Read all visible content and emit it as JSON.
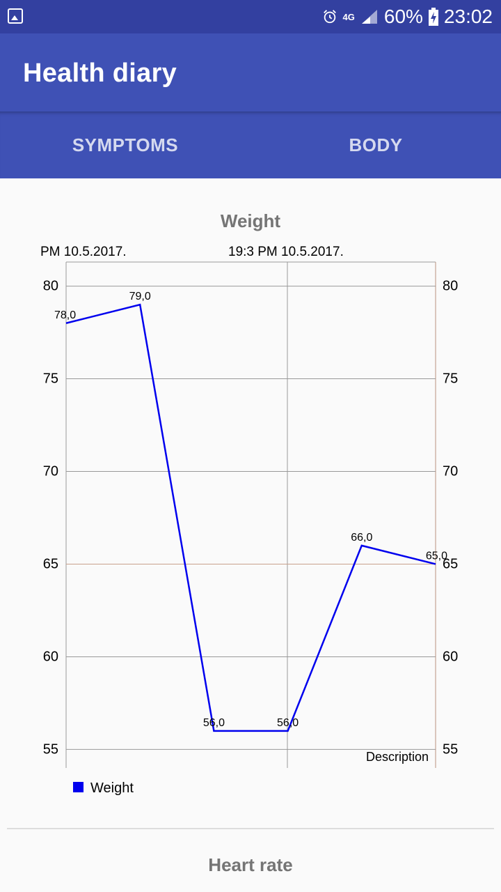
{
  "status_bar": {
    "network": "4G",
    "battery": "60%",
    "time": "23:02",
    "icons": [
      "gallery-icon",
      "alarm-icon",
      "signal-icon",
      "battery-icon"
    ]
  },
  "app": {
    "title": "Health diary"
  },
  "tabs": [
    {
      "label": "SYMPTOMS"
    },
    {
      "label": "BODY"
    }
  ],
  "colors": {
    "primary": "#3f51b5",
    "status_bar": "#3340a0",
    "series": "#0000ee",
    "limit_line": "#c8a08c"
  },
  "chart_data": {
    "type": "line",
    "title": "Weight",
    "description": "Description",
    "x_labels": [
      "PM 10.5.2017.",
      "19:3 PM 10.5.2017."
    ],
    "y_ticks": [
      55,
      60,
      65,
      70,
      75,
      80
    ],
    "ylim": [
      54,
      81.3
    ],
    "limit_line": 65,
    "legend": "bottom-left",
    "series": [
      {
        "name": "Weight",
        "values": [
          78.0,
          79.0,
          56.0,
          56.0,
          66.0,
          65.0
        ],
        "labels": [
          "78,0",
          "79,0",
          "56,0",
          "56,0",
          "66,0",
          "65,0"
        ]
      }
    ]
  },
  "second_chart": {
    "title": "Heart rate"
  }
}
